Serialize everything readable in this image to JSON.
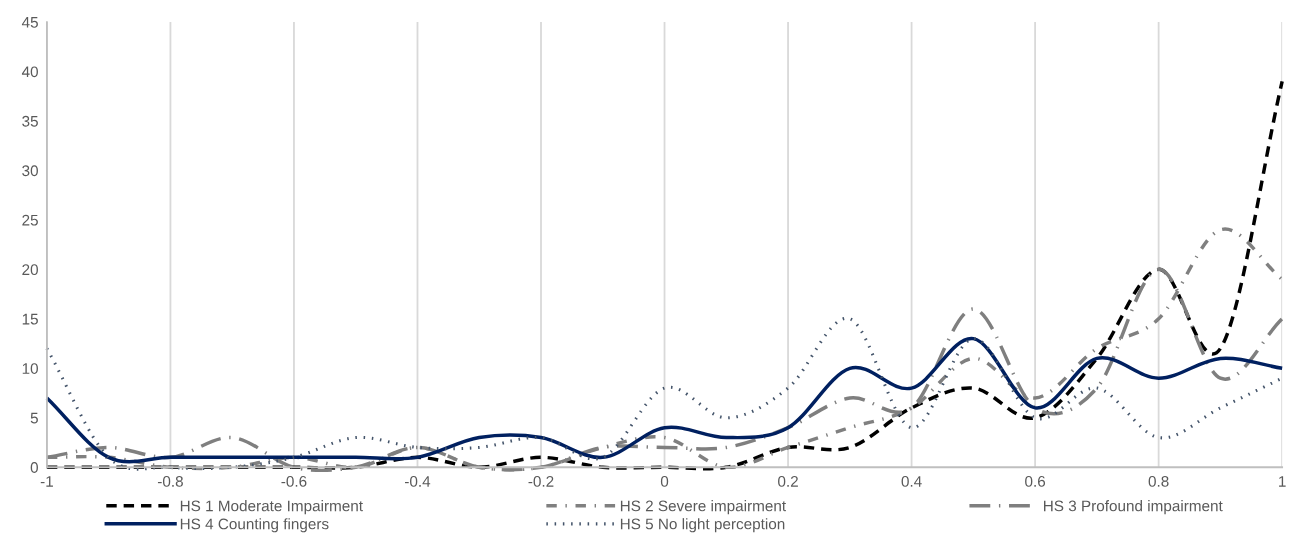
{
  "chart_data": {
    "type": "line",
    "x": [
      -1,
      -0.9,
      -0.8,
      -0.7,
      -0.6,
      -0.5,
      -0.4,
      -0.3,
      -0.2,
      -0.1,
      0,
      0.1,
      0.2,
      0.3,
      0.4,
      0.5,
      0.6,
      0.7,
      0.8,
      0.9,
      1
    ],
    "series": [
      {
        "name": "HS 1 Moderate Impairment",
        "color": "#000000",
        "line_style": "dashed",
        "values": [
          0,
          0,
          0,
          0,
          0,
          0,
          1,
          0,
          1,
          0,
          0,
          0,
          2,
          2,
          6,
          8,
          5,
          11,
          20,
          12,
          39
        ]
      },
      {
        "name": "HS 2 Severe impairment",
        "color": "#808080",
        "line_style": "dashdot",
        "values": [
          1,
          1,
          0,
          0,
          1,
          0,
          2,
          0,
          0,
          2,
          3,
          0,
          2,
          4,
          6,
          11,
          7,
          12,
          15,
          24,
          19
        ]
      },
      {
        "name": "HS 3 Profound impairment",
        "color": "#7f7f7f",
        "line_style": "longdashdot",
        "values": [
          1,
          2,
          1,
          3,
          0,
          0,
          2,
          0,
          0,
          2,
          2,
          2,
          4,
          7,
          6,
          16,
          6,
          8,
          20,
          9,
          15
        ]
      },
      {
        "name": "HS 4 Counting fingers",
        "color": "#002060",
        "line_style": "solid",
        "values": [
          7,
          1,
          1,
          1,
          1,
          1,
          1,
          3,
          3,
          1,
          4,
          3,
          4,
          10,
          8,
          13,
          6,
          11,
          9,
          11,
          10
        ]
      },
      {
        "name": "HS 5 No light perception",
        "color": "#44546a",
        "line_style": "dotted",
        "values": [
          12,
          1,
          0,
          0,
          1,
          3,
          2,
          2,
          3,
          1,
          8,
          5,
          8,
          15,
          4,
          13,
          5,
          8,
          3,
          6,
          9
        ]
      }
    ],
    "xlim": [
      -1,
      1
    ],
    "xticks": [
      -1,
      -0.8,
      -0.6,
      -0.4,
      -0.2,
      0,
      0.2,
      0.4,
      0.6,
      0.8,
      1
    ],
    "ylim": [
      0,
      45
    ],
    "yticks": [
      0,
      5,
      10,
      15,
      20,
      25,
      30,
      35,
      40,
      45
    ],
    "grid": "x",
    "legend": "bottom",
    "marker": "none"
  }
}
